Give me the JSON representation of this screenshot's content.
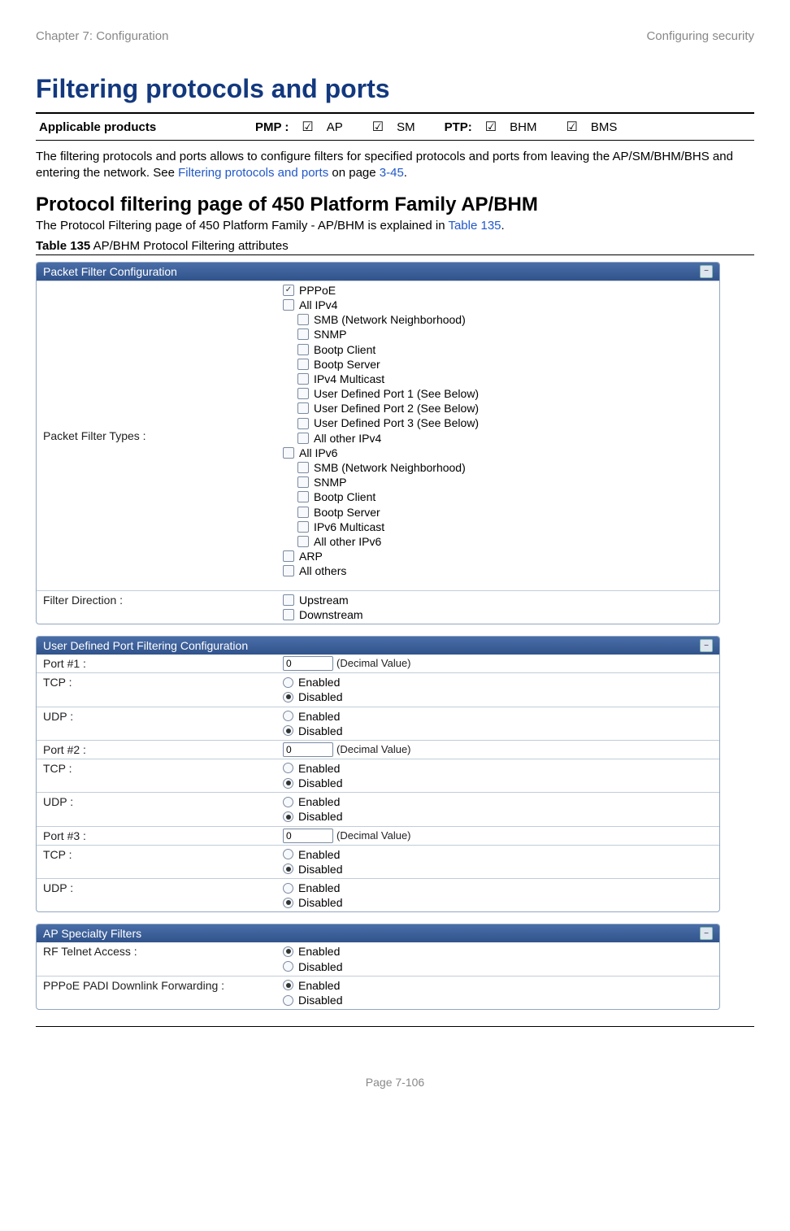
{
  "header": {
    "left": "Chapter 7:  Configuration",
    "right": "Configuring security"
  },
  "title": "Filtering protocols and ports",
  "applicable": {
    "label": "Applicable products",
    "pmp_label": "PMP :",
    "ptp_label": "PTP:",
    "check": "☑",
    "items": {
      "ap": "AP",
      "sm": "SM",
      "bhm": "BHM",
      "bms": "BMS"
    }
  },
  "intro": {
    "pre": "The filtering protocols and ports allows to configure filters for specified protocols and ports from leaving the AP/SM/BHM/BHS and entering the network. See ",
    "link": "Filtering protocols and ports",
    "mid": " on page ",
    "pageref": "3-45",
    "post": "."
  },
  "h2": "Protocol filtering page of 450 Platform Family AP/BHM",
  "intro2": {
    "pre": "The Protocol Filtering page of 450 Platform Family - AP/BHM is explained in ",
    "ref": "Table 135",
    "post": "."
  },
  "caption": {
    "b": "Table 135",
    "rest": " AP/BHM Protocol Filtering attributes"
  },
  "panel1": {
    "title": "Packet Filter Configuration",
    "row1_label": "Packet Filter Types :",
    "filters": [
      {
        "lvl": 1,
        "checked": true,
        "label": "PPPoE"
      },
      {
        "lvl": 1,
        "checked": false,
        "label": "All IPv4"
      },
      {
        "lvl": 2,
        "checked": false,
        "label": "SMB (Network Neighborhood)"
      },
      {
        "lvl": 2,
        "checked": false,
        "label": "SNMP"
      },
      {
        "lvl": 2,
        "checked": false,
        "label": "Bootp Client"
      },
      {
        "lvl": 2,
        "checked": false,
        "label": "Bootp Server"
      },
      {
        "lvl": 2,
        "checked": false,
        "label": "IPv4 Multicast"
      },
      {
        "lvl": 2,
        "checked": false,
        "label": "User Defined Port 1 (See Below)"
      },
      {
        "lvl": 2,
        "checked": false,
        "label": "User Defined Port 2 (See Below)"
      },
      {
        "lvl": 2,
        "checked": false,
        "label": "User Defined Port 3 (See Below)"
      },
      {
        "lvl": 2,
        "checked": false,
        "label": "All other IPv4"
      },
      {
        "lvl": 1,
        "checked": false,
        "label": "All IPv6"
      },
      {
        "lvl": 2,
        "checked": false,
        "label": "SMB (Network Neighborhood)"
      },
      {
        "lvl": 2,
        "checked": false,
        "label": "SNMP"
      },
      {
        "lvl": 2,
        "checked": false,
        "label": "Bootp Client"
      },
      {
        "lvl": 2,
        "checked": false,
        "label": "Bootp Server"
      },
      {
        "lvl": 2,
        "checked": false,
        "label": "IPv6 Multicast"
      },
      {
        "lvl": 2,
        "checked": false,
        "label": "All other IPv6"
      },
      {
        "lvl": 1,
        "checked": false,
        "label": "ARP"
      },
      {
        "lvl": 1,
        "checked": false,
        "label": "All others"
      }
    ],
    "row2_label": "Filter Direction :",
    "dir": [
      {
        "label": "Upstream"
      },
      {
        "label": "Downstream"
      }
    ]
  },
  "panel2": {
    "title": "User Defined Port Filtering Configuration",
    "port_note": "(Decimal Value)",
    "enabled": "Enabled",
    "disabled": "Disabled",
    "rows": [
      {
        "label": "Port #1 :",
        "type": "port",
        "value": "0"
      },
      {
        "label": "TCP :",
        "type": "endis"
      },
      {
        "label": "UDP :",
        "type": "endis"
      },
      {
        "label": "Port #2 :",
        "type": "port",
        "value": "0"
      },
      {
        "label": "TCP :",
        "type": "endis"
      },
      {
        "label": "UDP :",
        "type": "endis"
      },
      {
        "label": "Port #3 :",
        "type": "port",
        "value": "0"
      },
      {
        "label": "TCP :",
        "type": "endis"
      },
      {
        "label": "UDP :",
        "type": "endis"
      }
    ]
  },
  "panel3": {
    "title": "AP Specialty Filters",
    "enabled": "Enabled",
    "disabled": "Disabled",
    "rows": [
      {
        "label": "RF Telnet Access :",
        "sel": "enabled"
      },
      {
        "label": "PPPoE PADI Downlink Forwarding :",
        "sel": "enabled"
      }
    ]
  },
  "footer": "Page 7-106"
}
